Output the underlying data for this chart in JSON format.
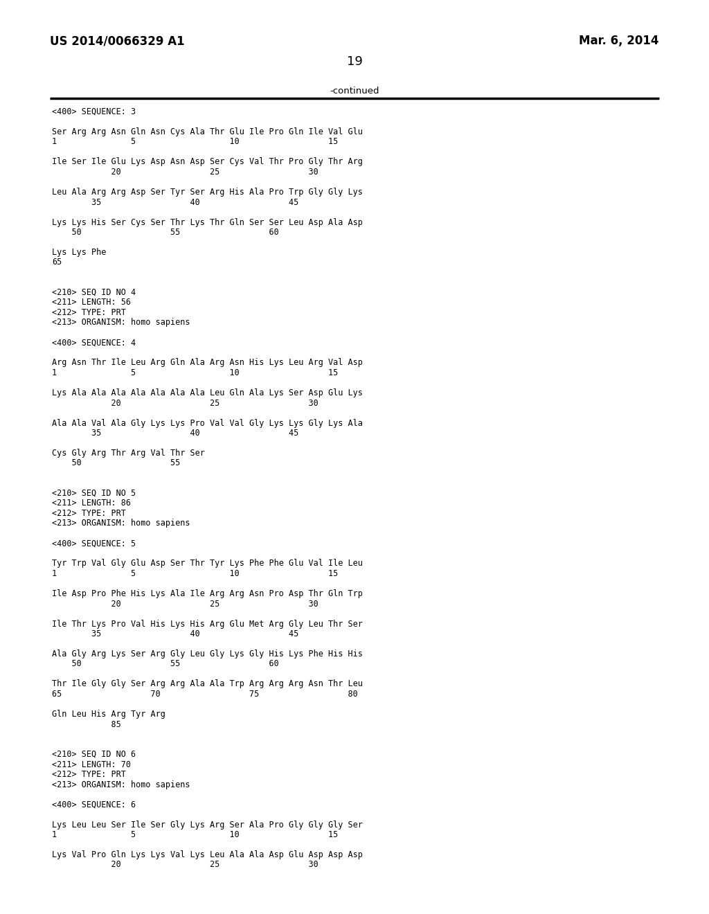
{
  "bg_color": "#ffffff",
  "header_left": "US 2014/0066329 A1",
  "header_right": "Mar. 6, 2014",
  "page_number": "19",
  "continued_label": "-continued",
  "lines": [
    "<400> SEQUENCE: 3",
    "",
    "Ser Arg Arg Asn Gln Asn Cys Ala Thr Glu Ile Pro Gln Ile Val Glu",
    "1               5                   10                  15",
    "",
    "Ile Ser Ile Glu Lys Asp Asn Asp Ser Cys Val Thr Pro Gly Thr Arg",
    "            20                  25                  30",
    "",
    "Leu Ala Arg Arg Asp Ser Tyr Ser Arg His Ala Pro Trp Gly Gly Lys",
    "        35                  40                  45",
    "",
    "Lys Lys His Ser Cys Ser Thr Lys Thr Gln Ser Ser Leu Asp Ala Asp",
    "    50                  55                  60",
    "",
    "Lys Lys Phe",
    "65",
    "",
    "",
    "<210> SEQ ID NO 4",
    "<211> LENGTH: 56",
    "<212> TYPE: PRT",
    "<213> ORGANISM: homo sapiens",
    "",
    "<400> SEQUENCE: 4",
    "",
    "Arg Asn Thr Ile Leu Arg Gln Ala Arg Asn His Lys Leu Arg Val Asp",
    "1               5                   10                  15",
    "",
    "Lys Ala Ala Ala Ala Ala Ala Ala Leu Gln Ala Lys Ser Asp Glu Lys",
    "            20                  25                  30",
    "",
    "Ala Ala Val Ala Gly Lys Lys Pro Val Val Gly Lys Lys Gly Lys Ala",
    "        35                  40                  45",
    "",
    "Cys Gly Arg Thr Arg Val Thr Ser",
    "    50                  55",
    "",
    "",
    "<210> SEQ ID NO 5",
    "<211> LENGTH: 86",
    "<212> TYPE: PRT",
    "<213> ORGANISM: homo sapiens",
    "",
    "<400> SEQUENCE: 5",
    "",
    "Tyr Trp Val Gly Glu Asp Ser Thr Tyr Lys Phe Phe Glu Val Ile Leu",
    "1               5                   10                  15",
    "",
    "Ile Asp Pro Phe His Lys Ala Ile Arg Arg Asn Pro Asp Thr Gln Trp",
    "            20                  25                  30",
    "",
    "Ile Thr Lys Pro Val His Lys His Arg Glu Met Arg Gly Leu Thr Ser",
    "        35                  40                  45",
    "",
    "Ala Gly Arg Lys Ser Arg Gly Leu Gly Lys Gly His Lys Phe His His",
    "    50                  55                  60",
    "",
    "Thr Ile Gly Gly Ser Arg Arg Ala Ala Trp Arg Arg Arg Asn Thr Leu",
    "65                  70                  75                  80",
    "",
    "Gln Leu His Arg Tyr Arg",
    "            85",
    "",
    "",
    "<210> SEQ ID NO 6",
    "<211> LENGTH: 70",
    "<212> TYPE: PRT",
    "<213> ORGANISM: homo sapiens",
    "",
    "<400> SEQUENCE: 6",
    "",
    "Lys Leu Leu Ser Ile Ser Gly Lys Arg Ser Ala Pro Gly Gly Gly Ser",
    "1               5                   10                  15",
    "",
    "Lys Val Pro Gln Lys Lys Val Lys Leu Ala Ala Asp Glu Asp Asp Asp",
    "            20                  25                  30"
  ]
}
